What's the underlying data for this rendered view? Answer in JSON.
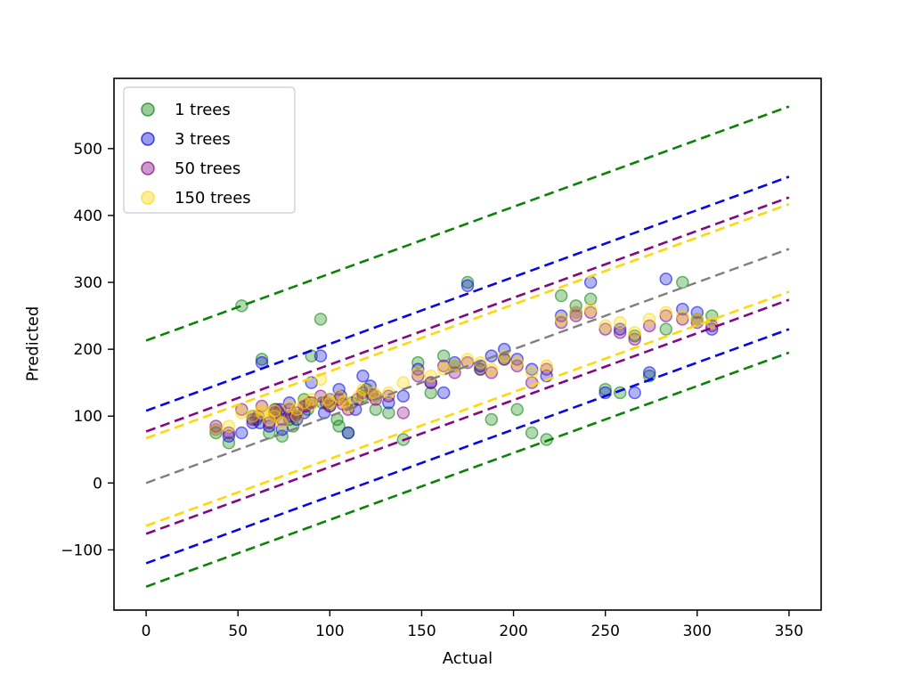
{
  "chart_data": {
    "type": "scatter",
    "title": "",
    "xlabel": "Actual",
    "ylabel": "Predicted",
    "xlim": [
      -17.5,
      367.5
    ],
    "ylim": [
      -190,
      605
    ],
    "xticks": [
      0,
      50,
      100,
      150,
      200,
      250,
      300,
      350
    ],
    "yticks": [
      -100,
      0,
      100,
      200,
      300,
      400,
      500
    ],
    "grid": false,
    "legend_position": "upper-left",
    "identity_line": {
      "name": "identity",
      "color": "#7f7f7f",
      "slope": 1,
      "intercept": 0,
      "x_range": [
        0,
        350
      ]
    },
    "series": [
      {
        "name": "1 trees",
        "color": "#008000",
        "band_upper": 213,
        "band_lower": -155,
        "points": [
          [
            38,
            75
          ],
          [
            45,
            60
          ],
          [
            52,
            265
          ],
          [
            58,
            100
          ],
          [
            63,
            185
          ],
          [
            67,
            75
          ],
          [
            70,
            110
          ],
          [
            74,
            70
          ],
          [
            78,
            95
          ],
          [
            82,
            100
          ],
          [
            86,
            125
          ],
          [
            90,
            190
          ],
          [
            95,
            245
          ],
          [
            100,
            115
          ],
          [
            105,
            85
          ],
          [
            110,
            75
          ],
          [
            118,
            130
          ],
          [
            125,
            110
          ],
          [
            132,
            105
          ],
          [
            140,
            65
          ],
          [
            148,
            180
          ],
          [
            155,
            135
          ],
          [
            162,
            190
          ],
          [
            168,
            175
          ],
          [
            175,
            300
          ],
          [
            182,
            170
          ],
          [
            188,
            95
          ],
          [
            195,
            185
          ],
          [
            202,
            110
          ],
          [
            210,
            75
          ],
          [
            218,
            65
          ],
          [
            226,
            280
          ],
          [
            234,
            265
          ],
          [
            242,
            275
          ],
          [
            250,
            140
          ],
          [
            258,
            135
          ],
          [
            266,
            220
          ],
          [
            274,
            160
          ],
          [
            283,
            230
          ],
          [
            292,
            300
          ],
          [
            300,
            245
          ],
          [
            308,
            250
          ],
          [
            60,
            95
          ],
          [
            72,
            105
          ],
          [
            80,
            85
          ],
          [
            88,
            110
          ],
          [
            96,
            120
          ],
          [
            104,
            95
          ],
          [
            112,
            120
          ],
          [
            120,
            140
          ]
        ]
      },
      {
        "name": "3 trees",
        "color": "#0000e1",
        "band_upper": 108,
        "band_lower": -120,
        "points": [
          [
            38,
            80
          ],
          [
            45,
            70
          ],
          [
            52,
            75
          ],
          [
            58,
            90
          ],
          [
            63,
            180
          ],
          [
            67,
            85
          ],
          [
            70,
            100
          ],
          [
            74,
            80
          ],
          [
            78,
            120
          ],
          [
            82,
            95
          ],
          [
            86,
            105
          ],
          [
            90,
            150
          ],
          [
            95,
            190
          ],
          [
            100,
            125
          ],
          [
            105,
            140
          ],
          [
            110,
            75
          ],
          [
            118,
            160
          ],
          [
            125,
            130
          ],
          [
            132,
            120
          ],
          [
            140,
            130
          ],
          [
            148,
            170
          ],
          [
            155,
            150
          ],
          [
            162,
            135
          ],
          [
            168,
            180
          ],
          [
            175,
            295
          ],
          [
            182,
            175
          ],
          [
            188,
            190
          ],
          [
            195,
            200
          ],
          [
            202,
            185
          ],
          [
            210,
            170
          ],
          [
            218,
            160
          ],
          [
            226,
            250
          ],
          [
            234,
            255
          ],
          [
            242,
            300
          ],
          [
            250,
            135
          ],
          [
            258,
            230
          ],
          [
            266,
            135
          ],
          [
            274,
            165
          ],
          [
            283,
            305
          ],
          [
            292,
            260
          ],
          [
            300,
            255
          ],
          [
            308,
            230
          ],
          [
            62,
            90
          ],
          [
            73,
            110
          ],
          [
            81,
            100
          ],
          [
            89,
            120
          ],
          [
            97,
            105
          ],
          [
            106,
            130
          ],
          [
            114,
            110
          ],
          [
            122,
            145
          ]
        ]
      },
      {
        "name": "50 trees",
        "color": "#800080",
        "band_upper": 77,
        "band_lower": -76,
        "points": [
          [
            38,
            85
          ],
          [
            45,
            75
          ],
          [
            52,
            110
          ],
          [
            58,
            95
          ],
          [
            63,
            115
          ],
          [
            67,
            90
          ],
          [
            70,
            105
          ],
          [
            74,
            95
          ],
          [
            78,
            110
          ],
          [
            82,
            105
          ],
          [
            86,
            115
          ],
          [
            90,
            120
          ],
          [
            95,
            130
          ],
          [
            100,
            115
          ],
          [
            105,
            125
          ],
          [
            110,
            110
          ],
          [
            118,
            135
          ],
          [
            125,
            125
          ],
          [
            132,
            130
          ],
          [
            140,
            105
          ],
          [
            148,
            160
          ],
          [
            155,
            150
          ],
          [
            162,
            175
          ],
          [
            168,
            165
          ],
          [
            175,
            180
          ],
          [
            182,
            170
          ],
          [
            188,
            165
          ],
          [
            195,
            185
          ],
          [
            202,
            175
          ],
          [
            210,
            150
          ],
          [
            218,
            170
          ],
          [
            226,
            240
          ],
          [
            234,
            250
          ],
          [
            242,
            255
          ],
          [
            250,
            230
          ],
          [
            258,
            225
          ],
          [
            266,
            215
          ],
          [
            274,
            235
          ],
          [
            283,
            250
          ],
          [
            292,
            245
          ],
          [
            300,
            240
          ],
          [
            308,
            235
          ],
          [
            61,
            100
          ],
          [
            71,
            110
          ],
          [
            79,
            100
          ],
          [
            87,
            115
          ],
          [
            98,
            120
          ],
          [
            107,
            118
          ],
          [
            115,
            125
          ],
          [
            123,
            132
          ]
        ]
      },
      {
        "name": "150 trees",
        "color": "#ffd700",
        "band_upper": 67,
        "band_lower": -64,
        "points": [
          [
            38,
            80
          ],
          [
            45,
            85
          ],
          [
            52,
            105
          ],
          [
            58,
            100
          ],
          [
            63,
            110
          ],
          [
            67,
            95
          ],
          [
            70,
            100
          ],
          [
            74,
            90
          ],
          [
            78,
            115
          ],
          [
            82,
            110
          ],
          [
            86,
            120
          ],
          [
            90,
            125
          ],
          [
            95,
            155
          ],
          [
            100,
            120
          ],
          [
            105,
            130
          ],
          [
            110,
            115
          ],
          [
            118,
            140
          ],
          [
            125,
            130
          ],
          [
            132,
            135
          ],
          [
            140,
            150
          ],
          [
            148,
            165
          ],
          [
            155,
            160
          ],
          [
            162,
            170
          ],
          [
            168,
            175
          ],
          [
            175,
            185
          ],
          [
            182,
            180
          ],
          [
            188,
            170
          ],
          [
            195,
            190
          ],
          [
            202,
            180
          ],
          [
            210,
            165
          ],
          [
            218,
            175
          ],
          [
            226,
            245
          ],
          [
            234,
            255
          ],
          [
            242,
            260
          ],
          [
            250,
            235
          ],
          [
            258,
            240
          ],
          [
            266,
            225
          ],
          [
            274,
            245
          ],
          [
            283,
            255
          ],
          [
            292,
            250
          ],
          [
            300,
            245
          ],
          [
            308,
            240
          ],
          [
            63,
            105
          ],
          [
            70,
            108
          ],
          [
            82,
            100
          ],
          [
            90,
            118
          ],
          [
            99,
            125
          ],
          [
            108,
            122
          ],
          [
            116,
            130
          ],
          [
            124,
            135
          ]
        ]
      }
    ]
  }
}
